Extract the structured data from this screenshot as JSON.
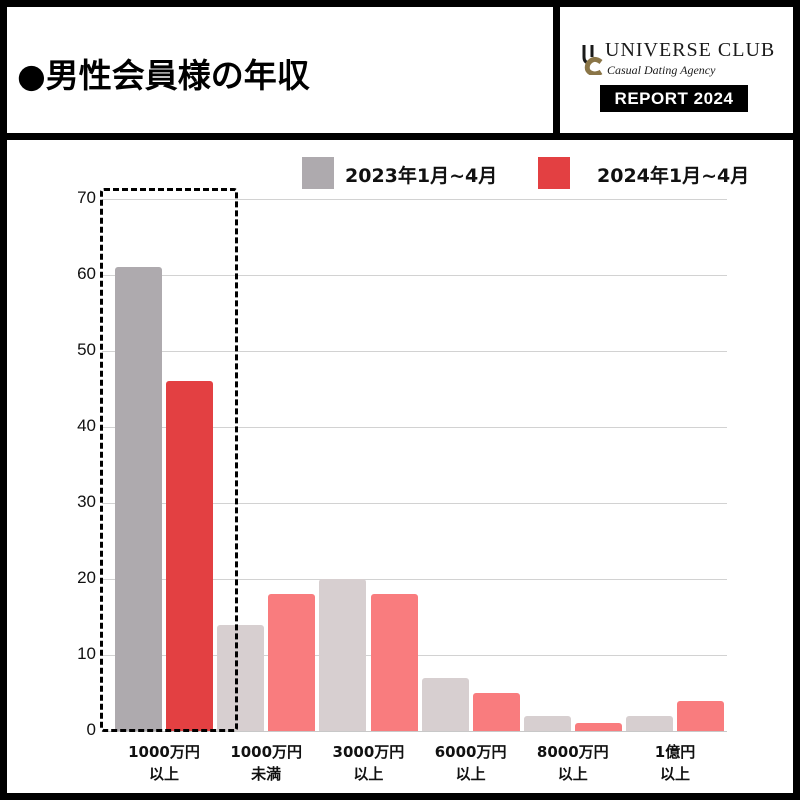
{
  "header": {
    "title": "●男性会員様の年収",
    "logo": {
      "name": "UNIVERSE CLUB",
      "tagline": "Casual Dating Agency",
      "badge": "REPORT 2024",
      "colors": {
        "dark": "#1a1a1a",
        "gold": "#8a7547"
      }
    }
  },
  "legend": [
    {
      "label": "2023年1月~4月",
      "color": "#aeaaae"
    },
    {
      "label": "2024年1月~4月",
      "color": "#e34042"
    }
  ],
  "chart_data": {
    "type": "bar",
    "title": "男性会員様の年収",
    "xlabel": "",
    "ylabel": "",
    "ylim": [
      0,
      70
    ],
    "yticks": [
      0,
      10,
      20,
      30,
      40,
      50,
      60,
      70
    ],
    "grid": true,
    "legend_position": "top-right",
    "categories": [
      [
        "1000万円",
        "以上"
      ],
      [
        "1000万円",
        "未満"
      ],
      [
        "3000万円",
        "以上"
      ],
      [
        "6000万円",
        "以上"
      ],
      [
        "8000万円",
        "以上"
      ],
      [
        "1億円",
        "以上"
      ]
    ],
    "series": [
      {
        "name": "2023年1月~4月",
        "values": [
          61,
          14,
          20,
          7,
          2,
          2
        ]
      },
      {
        "name": "2024年1月~4月",
        "values": [
          46,
          18,
          18,
          5,
          1,
          4
        ]
      }
    ],
    "annotations": [
      {
        "type": "dashed-box",
        "target_category": 0,
        "note": "1000万円 以上 highlighted"
      }
    ],
    "bar_colors": {
      "highlighted": {
        "2023年1月~4月": "#aeaaae",
        "2024年1月~4月": "#e34042"
      },
      "others": {
        "2023年1月~4月": "#d7cfd0",
        "2024年1月~4月": "#f97c7e"
      }
    }
  }
}
